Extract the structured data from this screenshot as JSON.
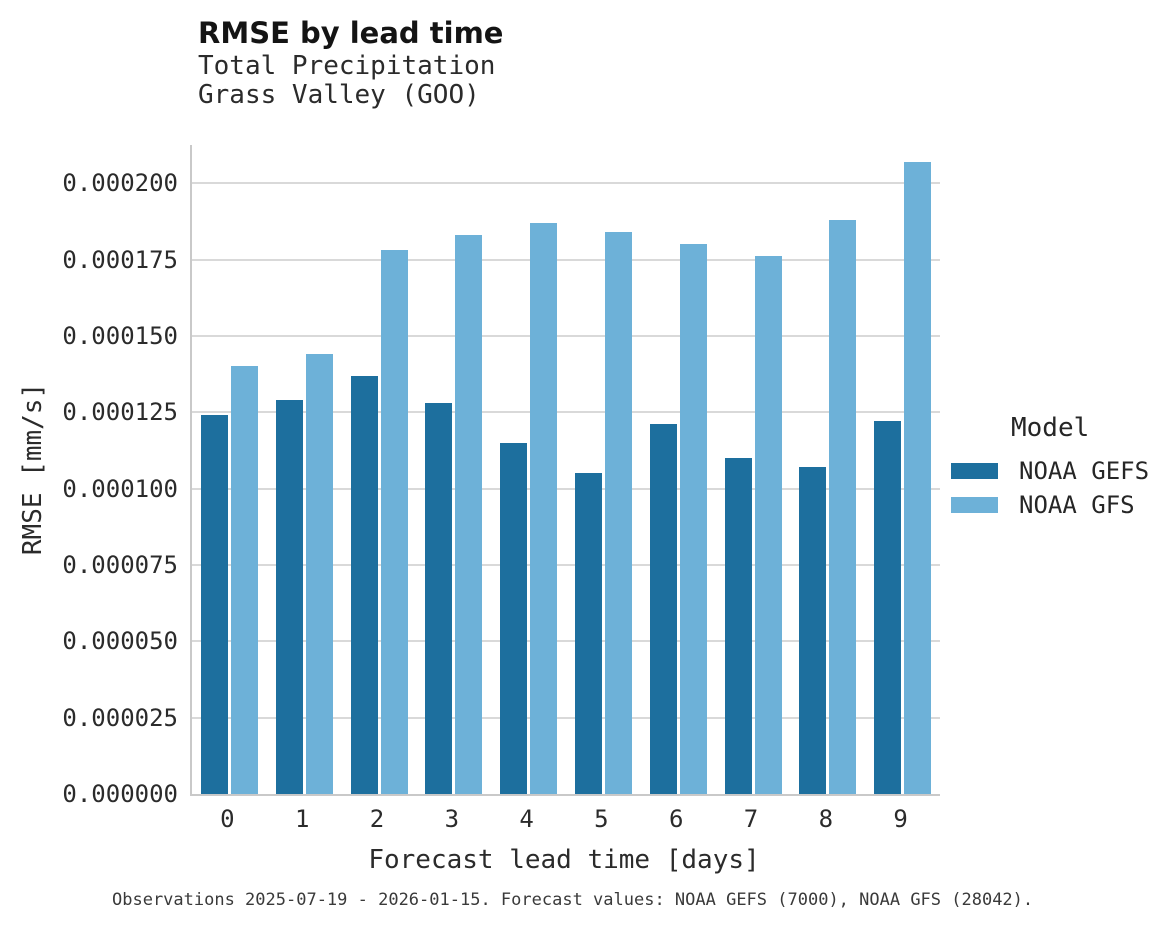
{
  "header": {
    "title": "RMSE by lead time",
    "subtitle_line1": "Total Precipitation",
    "subtitle_line2": "Grass Valley (GOO)"
  },
  "chart_data": {
    "type": "bar",
    "title": "RMSE by lead time",
    "subtitle": [
      "Total Precipitation",
      "Grass Valley (GOO)"
    ],
    "categories": [
      "0",
      "1",
      "2",
      "3",
      "4",
      "5",
      "6",
      "7",
      "8",
      "9"
    ],
    "series": [
      {
        "name": "NOAA GEFS",
        "color": "#1d6f9e",
        "values": [
          0.000124,
          0.000129,
          0.000137,
          0.000128,
          0.000115,
          0.000105,
          0.000121,
          0.00011,
          0.000107,
          0.000122
        ]
      },
      {
        "name": "NOAA GFS",
        "color": "#6db1d8",
        "values": [
          0.00014,
          0.000144,
          0.000178,
          0.000183,
          0.000187,
          0.000184,
          0.00018,
          0.000176,
          0.000188,
          0.000207
        ]
      }
    ],
    "xlabel": "Forecast lead time [days]",
    "ylabel": "RMSE [mm/s]",
    "ylim": [
      0,
      0.0002125
    ],
    "yticks": [
      0,
      2.5e-05,
      5e-05,
      7.5e-05,
      0.0001,
      0.000125,
      0.00015,
      0.000175,
      0.0002
    ],
    "ytick_labels": [
      "0.000000",
      "0.000025",
      "0.000050",
      "0.000075",
      "0.000100",
      "0.000125",
      "0.000150",
      "0.000175",
      "0.000200"
    ],
    "grid": true,
    "legend_title": "Model",
    "legend_position": "right"
  },
  "legend": {
    "title": "Model",
    "entries": [
      {
        "label": "NOAA GEFS",
        "color": "#1d6f9e"
      },
      {
        "label": "NOAA GFS",
        "color": "#6db1d8"
      }
    ]
  },
  "footer": {
    "caption": "Observations 2025-07-19 - 2026-01-15. Forecast values: NOAA GEFS (7000), NOAA GFS (28042)."
  },
  "colors": {
    "gefs_dark_blue": "#1d6f9e",
    "gfs_light_blue": "#6db1d8",
    "gridline": "#d9d9d9",
    "axis_spine": "#c9c9c9"
  }
}
